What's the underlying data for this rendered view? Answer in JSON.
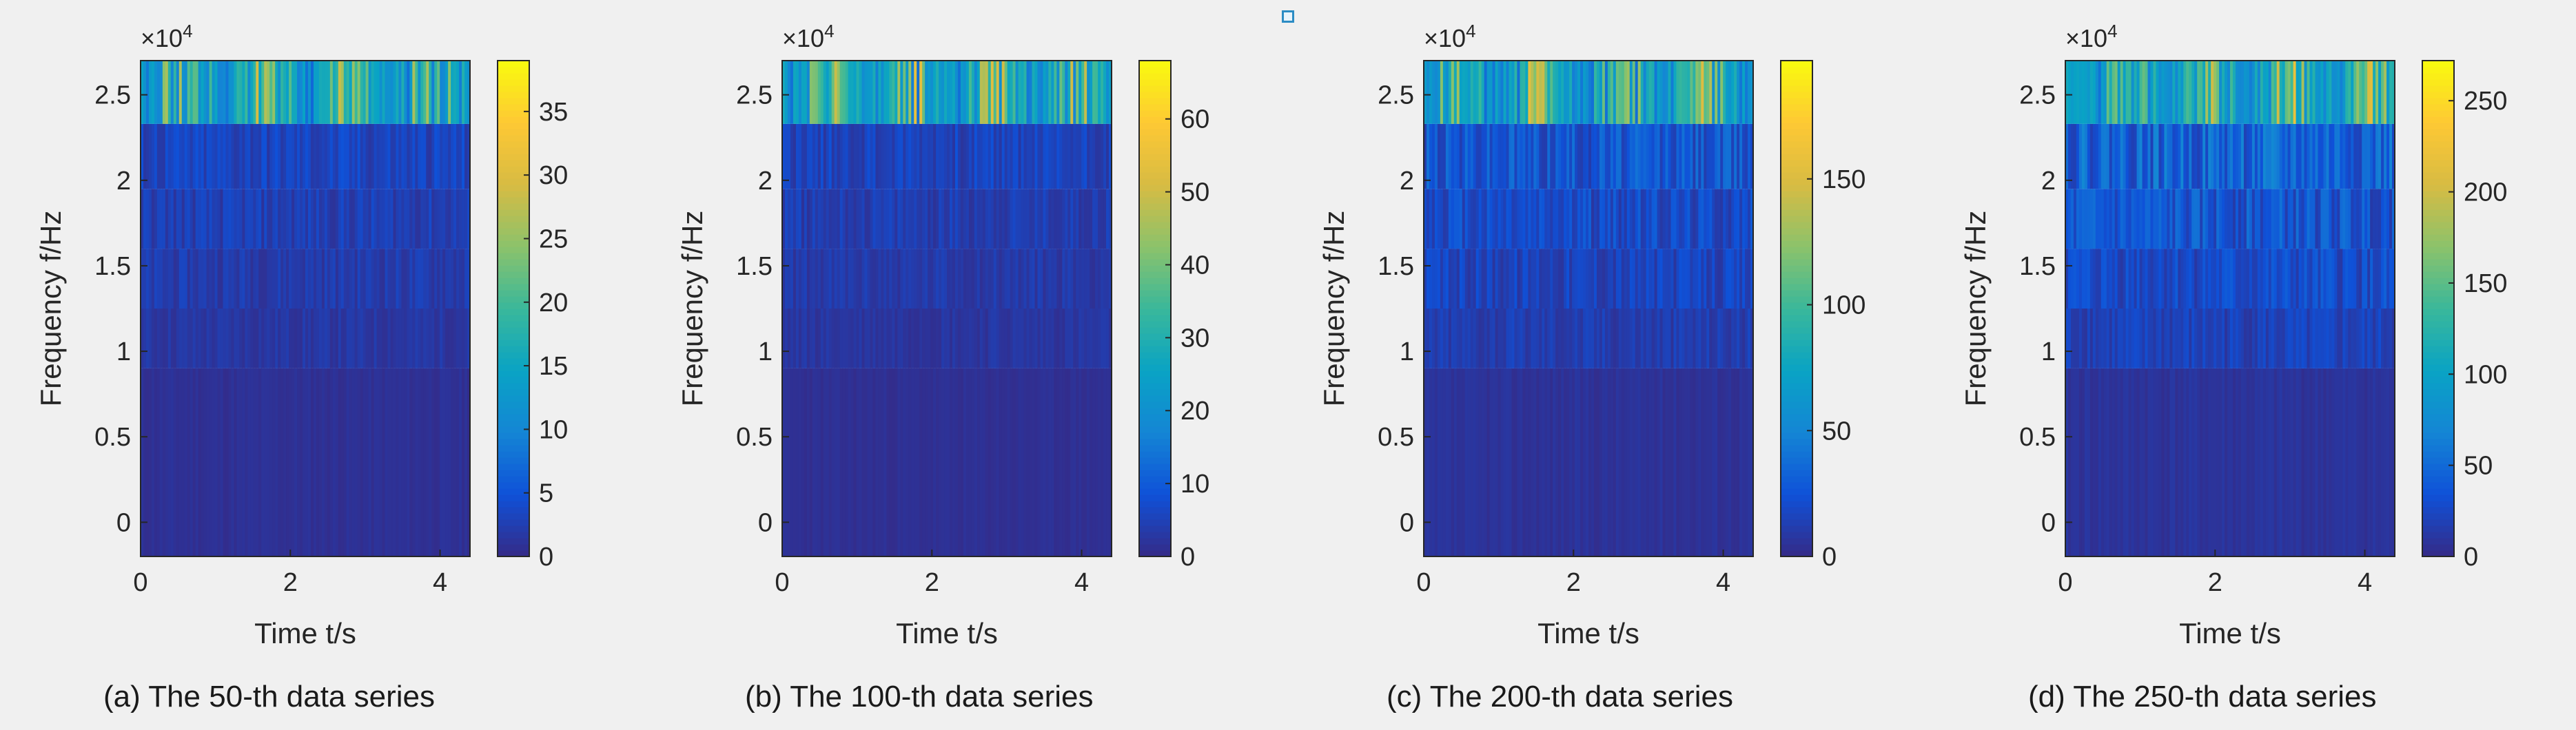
{
  "chart_data": [
    {
      "type": "heatmap",
      "caption": "(a) The 50-th data series",
      "xlabel": "Time t/s",
      "ylabel": "Frequency f/Hz",
      "exponent_label": "×10",
      "exponent_power": "4",
      "xlim": [
        0,
        4.4
      ],
      "ylim": [
        -2000,
        27000
      ],
      "xticks": [
        0,
        2,
        4
      ],
      "yticks": [
        0,
        0.5,
        1,
        1.5,
        2,
        2.5
      ],
      "ytick_labels": [
        "0",
        "0.5",
        "1",
        "1.5",
        "2",
        "2.5"
      ],
      "cmin": 0,
      "cmax": 39,
      "cticks": [
        0,
        5,
        10,
        15,
        20,
        25,
        30,
        35
      ],
      "band_edges_hz": [
        -2000,
        9000,
        12500,
        16000,
        19500,
        23300,
        27000
      ],
      "band_mean_values": [
        0.8,
        1.6,
        2.2,
        2.6,
        3.2,
        19
      ],
      "seed": 11
    },
    {
      "type": "heatmap",
      "caption": "(b) The 100-th data series",
      "xlabel": "Time t/s",
      "ylabel": "Frequency f/Hz",
      "exponent_label": "×10",
      "exponent_power": "4",
      "xlim": [
        0,
        4.4
      ],
      "ylim": [
        -2000,
        27000
      ],
      "xticks": [
        0,
        2,
        4
      ],
      "yticks": [
        0,
        0.5,
        1,
        1.5,
        2,
        2.5
      ],
      "ytick_labels": [
        "0",
        "0.5",
        "1",
        "1.5",
        "2",
        "2.5"
      ],
      "cmin": 0,
      "cmax": 68,
      "cticks": [
        0,
        10,
        20,
        30,
        40,
        50,
        60
      ],
      "band_edges_hz": [
        -2000,
        9000,
        12500,
        16000,
        19500,
        23300,
        27000
      ],
      "band_mean_values": [
        1.2,
        2.6,
        3.4,
        4.2,
        5.5,
        34
      ],
      "seed": 23
    },
    {
      "type": "heatmap",
      "caption": "(c) The 200-th data series",
      "xlabel": "Time t/s",
      "ylabel": "Frequency f/Hz",
      "exponent_label": "×10",
      "exponent_power": "4",
      "xlim": [
        0,
        4.4
      ],
      "ylim": [
        -2000,
        27000
      ],
      "xticks": [
        0,
        2,
        4
      ],
      "yticks": [
        0,
        0.5,
        1,
        1.5,
        2,
        2.5
      ],
      "ytick_labels": [
        "0",
        "0.5",
        "1",
        "1.5",
        "2",
        "2.5"
      ],
      "cmin": 0,
      "cmax": 197,
      "cticks": [
        0,
        50,
        100,
        150
      ],
      "band_edges_hz": [
        -2000,
        9000,
        12500,
        16000,
        19500,
        23300,
        27000
      ],
      "band_mean_values": [
        5,
        12,
        16,
        20,
        26,
        95
      ],
      "seed": 37
    },
    {
      "type": "heatmap",
      "caption": "(d) The 250-th data series",
      "xlabel": "Time t/s",
      "ylabel": "Frequency f/Hz",
      "exponent_label": "×10",
      "exponent_power": "4",
      "xlim": [
        0,
        4.4
      ],
      "ylim": [
        -2000,
        27000
      ],
      "xticks": [
        0,
        2,
        4
      ],
      "yticks": [
        0,
        0.5,
        1,
        1.5,
        2,
        2.5
      ],
      "ytick_labels": [
        "0",
        "0.5",
        "1",
        "1.5",
        "2",
        "2.5"
      ],
      "cmin": 0,
      "cmax": 272,
      "cticks": [
        0,
        50,
        100,
        150,
        200,
        250
      ],
      "band_edges_hz": [
        -2000,
        9000,
        12500,
        16000,
        19500,
        23300,
        27000
      ],
      "band_mean_values": [
        8,
        20,
        28,
        35,
        45,
        135
      ],
      "seed": 41
    }
  ]
}
